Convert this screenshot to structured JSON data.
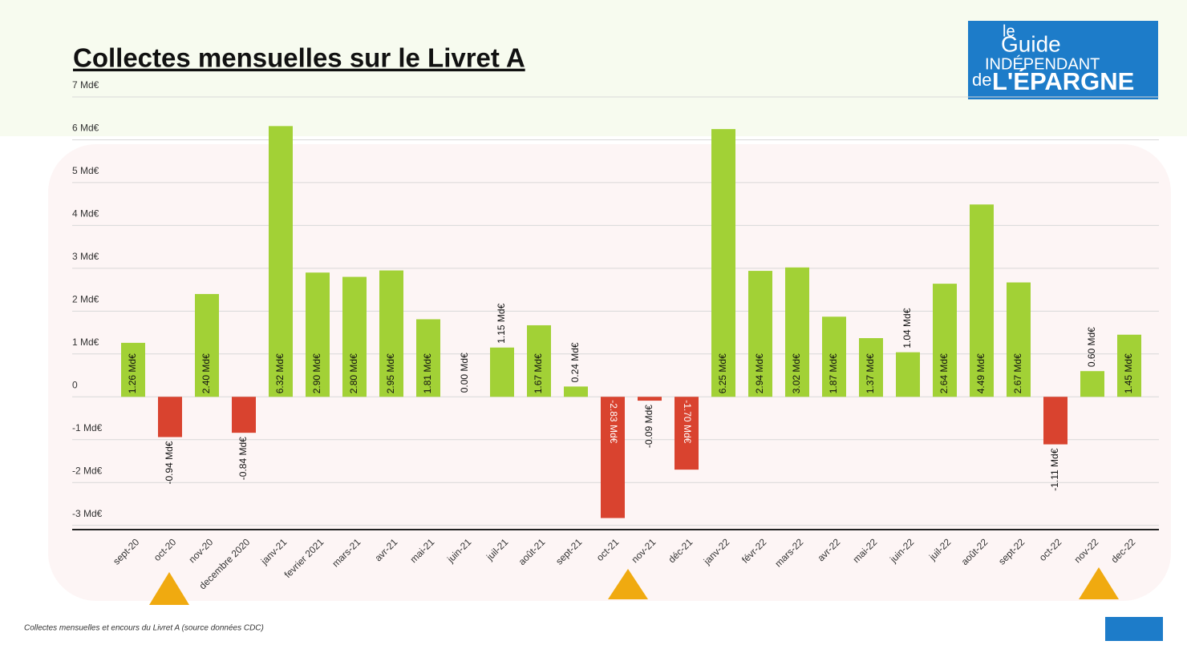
{
  "chart_data": {
    "type": "bar",
    "title": "Collectes mensuelles sur le Livret A",
    "footnote": "Collectes mensuelles et encours du Livret A (source données CDC)",
    "logo": {
      "line1": "le",
      "line2": "Guide",
      "line3": "INDÉPENDANT",
      "line4": "de",
      "line5": "L'ÉPARGNE"
    },
    "categories": [
      "sept-20",
      "oct-20",
      "nov-20",
      "decembre 2020",
      "janv-21",
      "fevrier 2021",
      "mars-21",
      "avr-21",
      "mai-21",
      "juin-21",
      "juil-21",
      "août-21",
      "sept-21",
      "oct-21",
      "nov-21",
      "déc-21",
      "janv-22",
      "févr-22",
      "mars-22",
      "avr-22",
      "mai-22",
      "juin-22",
      "juil-22",
      "août-22",
      "sept-22",
      "oct-22",
      "nov-22",
      "dec-22"
    ],
    "values": [
      1.26,
      -0.94,
      2.4,
      -0.84,
      6.32,
      2.9,
      2.8,
      2.95,
      1.81,
      0.0,
      1.15,
      1.67,
      0.24,
      -2.83,
      -0.09,
      -1.7,
      6.25,
      2.94,
      3.02,
      1.87,
      1.37,
      1.04,
      2.64,
      4.49,
      2.67,
      -1.11,
      0.6,
      1.45
    ],
    "value_labels": [
      "1.26 Md€",
      "-0.94 Md€",
      "2.40 Md€",
      "-0.84 Md€",
      "6.32 Md€",
      "2.90 Md€",
      "2.80 Md€",
      "2.95 Md€",
      "1.81 Md€",
      "0.00 Md€",
      "1.15 Md€",
      "1.67 Md€",
      "0.24 Md€",
      "-2.83 Md€",
      "-0.09 Md€",
      "-1.70 Md€",
      "6.25 Md€",
      "2.94 Md€",
      "3.02 Md€",
      "1.87 Md€",
      "1.37 Md€",
      "1.04 Md€",
      "2.64 Md€",
      "4.49 Md€",
      "2.67 Md€",
      "-1.11 Md€",
      "0.60 Md€",
      "1.45 Md€"
    ],
    "colors": {
      "positive": "#a2d136",
      "negative": "#d9432f"
    },
    "ylim": [
      -3.1,
      7
    ],
    "yticks": [
      {
        "value": 7,
        "label": "7 Md€"
      },
      {
        "value": 6,
        "label": "6 Md€"
      },
      {
        "value": 5,
        "label": "5 Md€"
      },
      {
        "value": 4,
        "label": "4 Md€"
      },
      {
        "value": 3,
        "label": "3 Md€"
      },
      {
        "value": 2,
        "label": "2 Md€"
      },
      {
        "value": 1,
        "label": "1 Md€"
      },
      0,
      {
        "value": -1,
        "label": "-1 Md€"
      },
      {
        "value": -2,
        "label": "-2 Md€"
      },
      {
        "value": -3,
        "label": "-3 Md€"
      }
    ],
    "grid": true
  }
}
